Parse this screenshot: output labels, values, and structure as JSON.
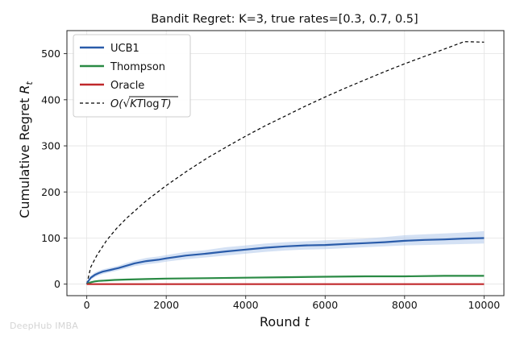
{
  "chart_data": {
    "type": "line",
    "title": "Bandit Regret: K=3, true rates=[0.3, 0.7, 0.5]",
    "xlabel_text": "Round ",
    "xlabel_var": "t",
    "ylabel_text": "Cumulative Regret ",
    "ylabel_var": "R",
    "ylabel_sub": "t",
    "xlim": [
      -500,
      10500
    ],
    "ylim": [
      -25,
      550
    ],
    "xticks": [
      0,
      2000,
      4000,
      6000,
      8000,
      10000
    ],
    "yticks": [
      0,
      100,
      200,
      300,
      400,
      500
    ],
    "grid": true,
    "legend_position": "top-left",
    "bound": {
      "name": "O(√KTlogT)",
      "name_prefix": "O(",
      "name_radicand": "KT",
      "name_log": "log",
      "name_tail": "T",
      "name_suffix": ")",
      "color": "#000000",
      "style": "dashed",
      "x": [
        0,
        100,
        250,
        500,
        750,
        1000,
        1500,
        2000,
        2500,
        3000,
        3500,
        4000,
        4500,
        5000,
        5500,
        6000,
        6500,
        7000,
        7500,
        8000,
        8500,
        9000,
        9500,
        10000
      ],
      "y": [
        0,
        37,
        62,
        95,
        121,
        143,
        181,
        214,
        244,
        272,
        297,
        321,
        344,
        365,
        386,
        406,
        425,
        443,
        461,
        478,
        494,
        510,
        526,
        525
      ]
    },
    "series": [
      {
        "name": "UCB1",
        "color": "#2a5caa",
        "band_color": "#a9c4ea",
        "x": [
          0,
          50,
          100,
          200,
          300,
          400,
          500,
          600,
          700,
          800,
          1000,
          1200,
          1500,
          1800,
          2000,
          2500,
          3000,
          3500,
          4000,
          4500,
          5000,
          5500,
          6000,
          6500,
          7000,
          7500,
          8000,
          8500,
          9000,
          9500,
          10000
        ],
        "y": [
          0,
          8,
          14,
          20,
          24,
          27,
          29,
          31,
          33,
          35,
          40,
          45,
          50,
          53,
          56,
          62,
          66,
          71,
          75,
          79,
          82,
          84,
          85,
          87,
          89,
          91,
          94,
          96,
          97,
          99,
          100
        ],
        "lower": [
          0,
          5,
          10,
          15,
          19,
          22,
          24,
          26,
          28,
          30,
          34,
          39,
          43,
          46,
          49,
          54,
          58,
          62,
          66,
          70,
          73,
          75,
          76,
          78,
          80,
          82,
          84,
          85,
          86,
          87,
          88
        ],
        "upper": [
          0,
          11,
          18,
          25,
          29,
          32,
          34,
          36,
          38,
          40,
          46,
          51,
          57,
          60,
          63,
          70,
          74,
          80,
          84,
          88,
          91,
          93,
          95,
          97,
          99,
          102,
          106,
          108,
          110,
          112,
          115
        ]
      },
      {
        "name": "Thompson",
        "color": "#2a8a44",
        "band_color": "#a8d9b3",
        "x": [
          0,
          100,
          200,
          300,
          500,
          700,
          1000,
          1500,
          2000,
          3000,
          4000,
          5000,
          6000,
          7000,
          8000,
          9000,
          10000
        ],
        "y": [
          0,
          4,
          6,
          7,
          8,
          9,
          10,
          11,
          12,
          13,
          14,
          15,
          16,
          17,
          17,
          18,
          18
        ],
        "lower": [
          0,
          3,
          5,
          6,
          7,
          8,
          9,
          10,
          11,
          12,
          13,
          14,
          15,
          15,
          16,
          16,
          17
        ],
        "upper": [
          0,
          5,
          7,
          8,
          9,
          10,
          11,
          12,
          13,
          14,
          15,
          16,
          17,
          18,
          18,
          19,
          20
        ]
      },
      {
        "name": "Oracle",
        "color": "#c0282b",
        "band_color": "#f0b0b0",
        "x": [
          0,
          10000
        ],
        "y": [
          0,
          0
        ],
        "lower": [
          0,
          0
        ],
        "upper": [
          0,
          0
        ]
      }
    ]
  },
  "watermark": "DeepHub IMBA"
}
